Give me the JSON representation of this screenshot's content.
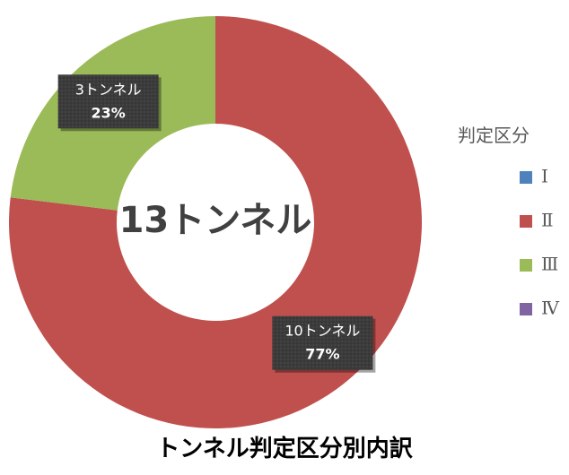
{
  "chart_data": {
    "type": "pie",
    "variant": "donut",
    "title": "トンネル判定区分別内訳",
    "center_label": "13トンネル",
    "legend": {
      "title": "判定区分",
      "placement": "right"
    },
    "series": [
      {
        "name": "Ⅰ",
        "value": 0,
        "color": "#4f81bd",
        "label_line1": "",
        "label_line2": ""
      },
      {
        "name": "Ⅱ",
        "value": 10,
        "color": "#c0504d",
        "label_line1": "10トンネル",
        "label_line2": "77%"
      },
      {
        "name": "Ⅲ",
        "value": 3,
        "color": "#9bbb59",
        "label_line1": "3トンネル",
        "label_line2": "23%"
      },
      {
        "name": "Ⅳ",
        "value": 0,
        "color": "#8064a2",
        "label_line1": "",
        "label_line2": ""
      }
    ]
  }
}
